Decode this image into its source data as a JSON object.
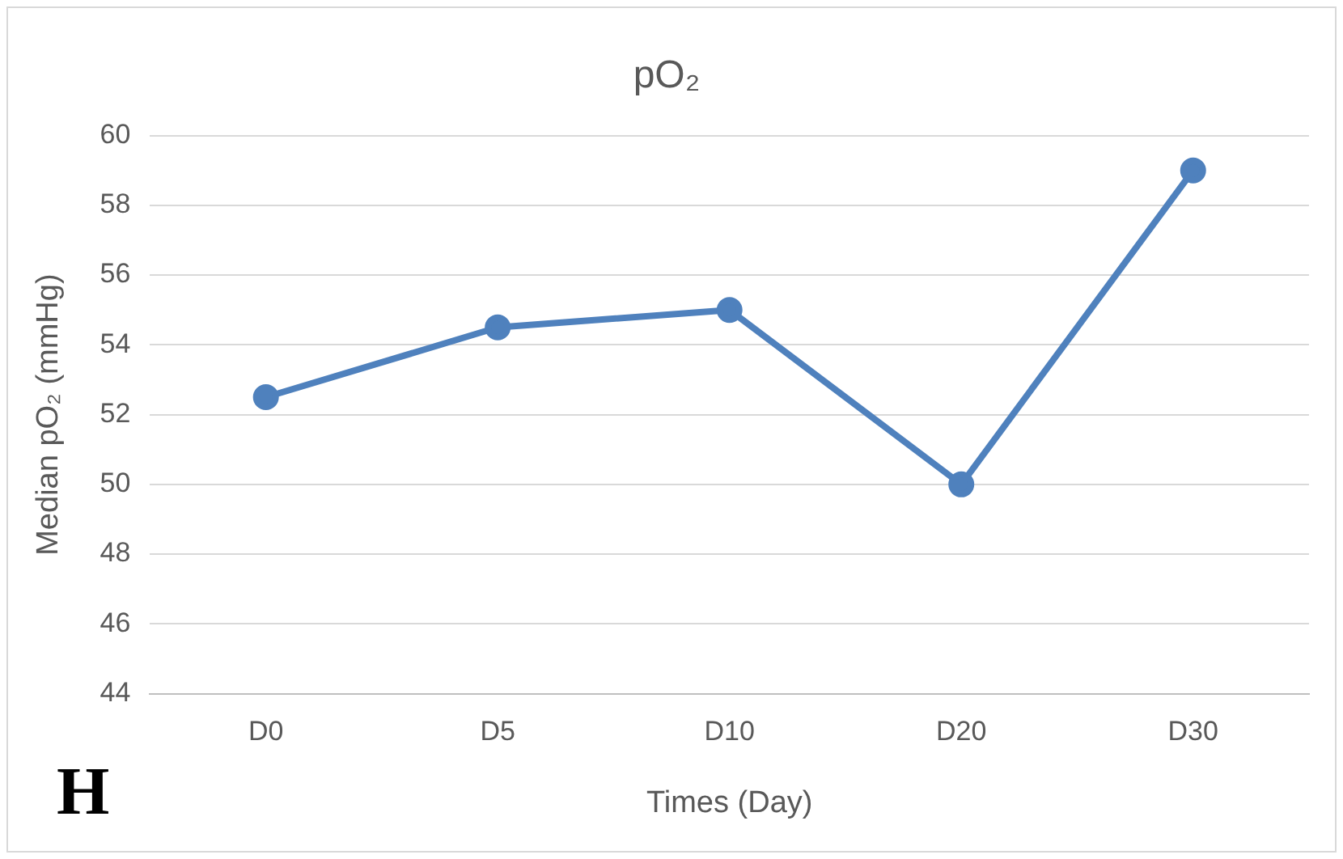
{
  "chart_data": {
    "type": "line",
    "title": "pO₂",
    "xlabel": "Times (Day)",
    "ylabel": "Median pO₂ (mmHg)",
    "categories": [
      "D0",
      "D5",
      "D10",
      "D20",
      "D30"
    ],
    "series": [
      {
        "color": "#4f81bd",
        "values": [
          52.5,
          54.5,
          55,
          50,
          59
        ]
      }
    ],
    "ylim": [
      44,
      60
    ],
    "yticks": [
      44,
      46,
      48,
      50,
      52,
      54,
      56,
      58,
      60
    ],
    "grid": "y",
    "legend": false,
    "marker": "circle",
    "line_style": "solid",
    "annotations": [
      "H"
    ]
  }
}
